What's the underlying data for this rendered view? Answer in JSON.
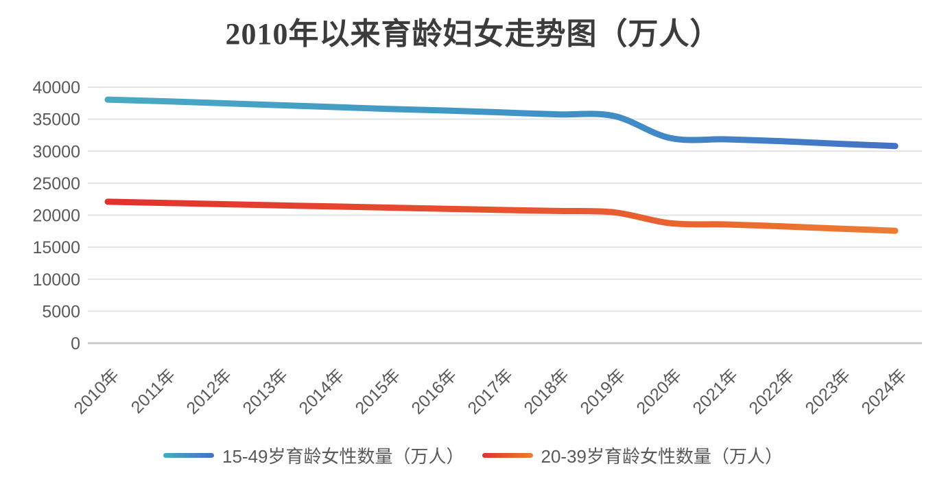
{
  "chart_data": {
    "type": "line",
    "title": "2010年以来育龄妇女走势图（万人）",
    "categories": [
      "2010年",
      "2011年",
      "2012年",
      "2013年",
      "2014年",
      "2015年",
      "2016年",
      "2017年",
      "2018年",
      "2019年",
      "2020年",
      "2021年",
      "2022年",
      "2023年",
      "2024年"
    ],
    "series": [
      {
        "name": "15-49岁育龄女性数量（万人）",
        "values": [
          38050,
          37800,
          37500,
          37200,
          36900,
          36600,
          36350,
          36050,
          35750,
          35500,
          32050,
          31850,
          31550,
          31150,
          30800
        ],
        "color_start": "#49AAC3",
        "color_mid": "#3F8FC6",
        "color_end": "#4472C4"
      },
      {
        "name": "20-39岁育龄女性数量（万人）",
        "values": [
          22100,
          21920,
          21730,
          21540,
          21360,
          21180,
          21000,
          20820,
          20650,
          20450,
          18750,
          18550,
          18250,
          17900,
          17570
        ],
        "color_start": "#E2312D",
        "color_mid": "#E85A2F",
        "color_end": "#ED7D31"
      }
    ],
    "y_axis": {
      "min": 0,
      "max": 40000,
      "step": 5000,
      "tick_labels": [
        "0",
        "5000",
        "10000",
        "15000",
        "20000",
        "25000",
        "30000",
        "35000",
        "40000"
      ]
    },
    "x_axis": {
      "label_rotation_degrees": -45
    },
    "legend_position": "bottom",
    "grid": "horizontal",
    "colors": {
      "background": "#FFFFFF",
      "title_text": "#3C3C3C",
      "axis_label_text": "#595959",
      "gridline": "#E3E3E3",
      "zero_axis_line": "#C8C8C8"
    }
  }
}
